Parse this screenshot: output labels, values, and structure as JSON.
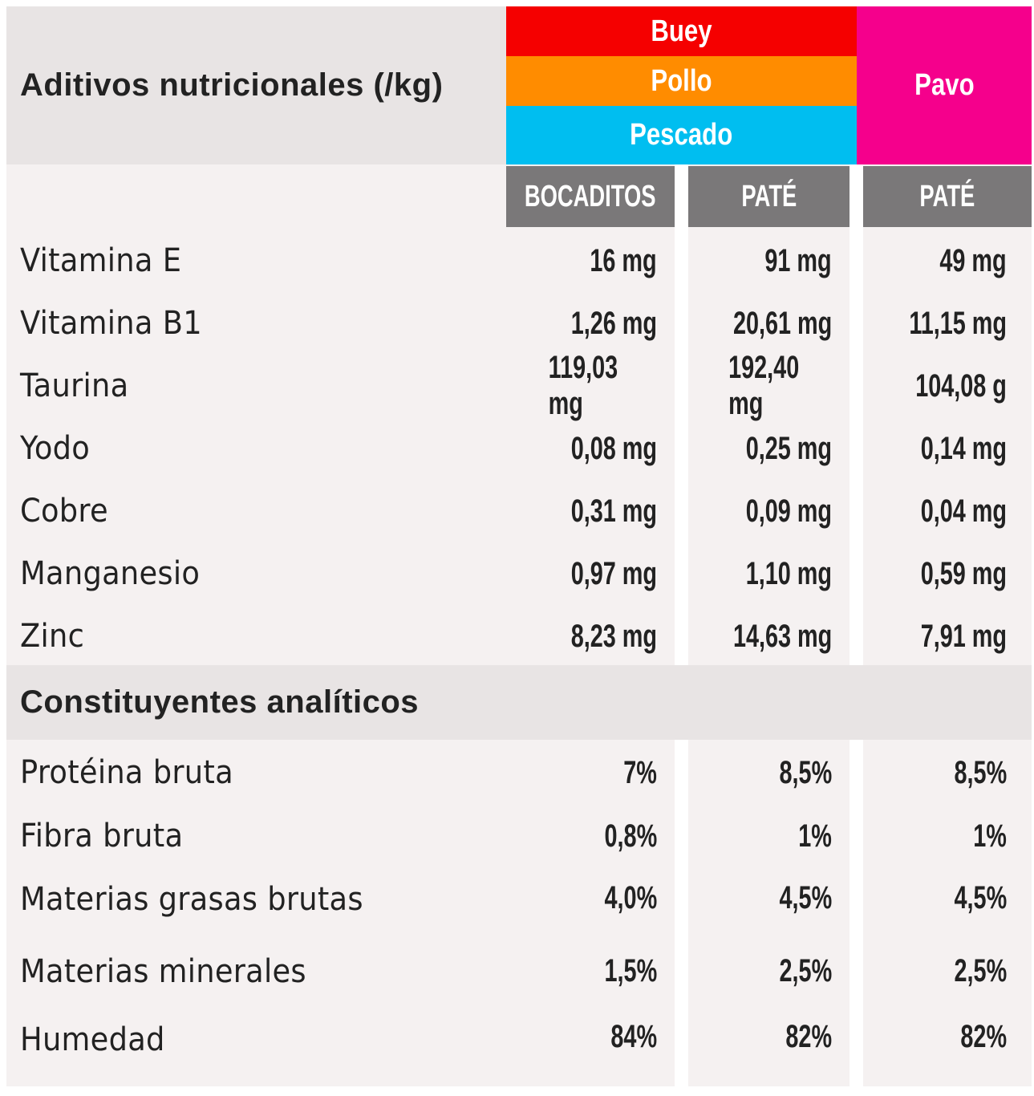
{
  "header": {
    "title": "Aditivos nutricionales (/kg)",
    "flavors": [
      {
        "label": "Buey",
        "color": "#f50000"
      },
      {
        "label": "Pollo",
        "color": "#ff8c00"
      },
      {
        "label": "Pescado",
        "color": "#00bef0"
      },
      {
        "label": "Pavo",
        "color": "#f5008c"
      }
    ],
    "columns": [
      "BOCADITOS",
      "PATÉ",
      "PATÉ"
    ]
  },
  "additives": [
    {
      "label": "Vitamina E",
      "values": [
        "16 mg",
        "91 mg",
        "49 mg"
      ]
    },
    {
      "label": "Vitamina B1",
      "values": [
        "1,26 mg",
        "20,61 mg",
        "11,15 mg"
      ]
    },
    {
      "label": "Taurina",
      "values": [
        "119,03 mg",
        "192,40 mg",
        "104,08 g"
      ]
    },
    {
      "label": "Yodo",
      "values": [
        "0,08 mg",
        "0,25 mg",
        "0,14 mg"
      ]
    },
    {
      "label": "Cobre",
      "values": [
        "0,31 mg",
        "0,09 mg",
        "0,04 mg"
      ]
    },
    {
      "label": "Manganesio",
      "values": [
        "0,97 mg",
        "1,10 mg",
        "0,59 mg"
      ]
    },
    {
      "label": "Zinc",
      "values": [
        "8,23 mg",
        "14,63 mg",
        "7,91 mg"
      ]
    }
  ],
  "section_title": "Constituyentes analíticos",
  "constituents": [
    {
      "label": "Protéina bruta",
      "values": [
        "7%",
        "8,5%",
        "8,5%"
      ]
    },
    {
      "label": "Fibra bruta",
      "values": [
        "0,8%",
        "1%",
        "1%"
      ]
    },
    {
      "label": "Materias grasas brutas",
      "values": [
        "4,0%",
        "4,5%",
        "4,5%"
      ]
    },
    {
      "label": "Materias minerales",
      "values": [
        "1,5%",
        "2,5%",
        "2,5%"
      ]
    },
    {
      "label": "Humedad",
      "values": [
        "84%",
        "82%",
        "82%"
      ]
    }
  ]
}
